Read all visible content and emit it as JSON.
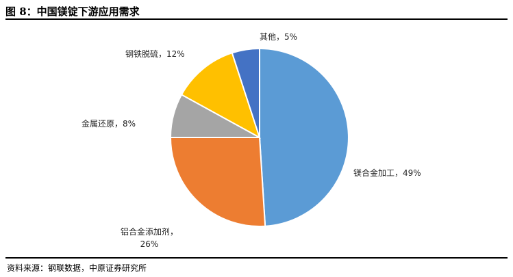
{
  "figure": {
    "title": "图 8：中国镁锭下游应用需求",
    "source": "资料来源：钢联数据，中原证券研究所"
  },
  "colors": {
    "slice_1": "#5b9bd5",
    "slice_2": "#ed7d31",
    "slice_3": "#a5a5a5",
    "slice_4": "#ffc000",
    "slice_5": "#4472c4"
  },
  "chart_data": {
    "type": "pie",
    "slices": [
      {
        "label": "镁合金加工",
        "value": 49,
        "display": "镁合金加工，49%",
        "color": "#5b9bd5"
      },
      {
        "label": "铝合金添加剂",
        "value": 26,
        "display_line1": "铝合金添加剂，",
        "display_line2": "26%",
        "color": "#ed7d31"
      },
      {
        "label": "金属还原",
        "value": 8,
        "display": "金属还原，8%",
        "color": "#a5a5a5"
      },
      {
        "label": "钢铁脱硫",
        "value": 12,
        "display": "钢铁脱硫，12%",
        "color": "#ffc000"
      },
      {
        "label": "其他",
        "value": 5,
        "display": "其他，5%",
        "color": "#4472c4"
      }
    ]
  }
}
